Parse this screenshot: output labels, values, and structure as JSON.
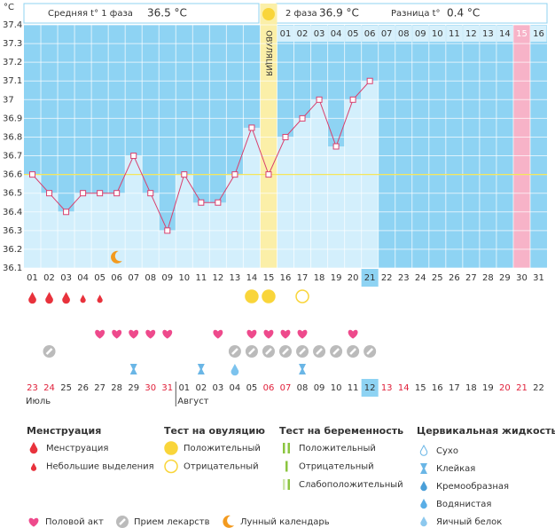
{
  "chart_data": {
    "type": "line",
    "y_unit": "°C",
    "ylim": [
      36.1,
      37.4
    ],
    "yticks": [
      36.1,
      36.2,
      36.3,
      36.4,
      36.5,
      36.6,
      36.7,
      36.8,
      36.9,
      37,
      37.1,
      37.2,
      37.3,
      37.4
    ],
    "categories": [
      "01",
      "02",
      "03",
      "04",
      "05",
      "06",
      "07",
      "08",
      "09",
      "10",
      "11",
      "12",
      "13",
      "14",
      "15",
      "16",
      "17",
      "18",
      "19",
      "20",
      "21",
      "22",
      "23",
      "24",
      "25",
      "26",
      "27",
      "28",
      "29",
      "30",
      "31"
    ],
    "values": [
      36.6,
      36.5,
      36.4,
      36.5,
      36.5,
      36.5,
      36.7,
      36.5,
      36.3,
      36.6,
      36.45,
      36.45,
      36.6,
      36.85,
      36.6,
      36.8,
      36.9,
      37.0,
      36.75,
      37.0,
      37.1,
      null,
      null,
      null,
      null,
      null,
      null,
      null,
      null,
      null,
      null
    ],
    "color": "#d9406e",
    "coverline": 36.6,
    "header": {
      "phase1_label": "Средняя t° 1 фаза",
      "phase1_value": "36.5 °C",
      "phase2_label": "2 фаза",
      "phase2_value": "36.9 °C",
      "diff_label": "Разница t°",
      "diff_value": "0.4 °C"
    },
    "ovulation": {
      "label": "ОВУЛЯЦИЯ",
      "day": "15"
    },
    "phase2_days": [
      "01",
      "02",
      "03",
      "04",
      "05",
      "06",
      "07",
      "08",
      "09",
      "10",
      "11",
      "12",
      "13",
      "14",
      "15",
      "16"
    ],
    "pink_day": "30",
    "today": "21",
    "menstruation": {
      "heavy": [
        "01",
        "02",
        "03"
      ],
      "light": [
        "04",
        "05"
      ]
    },
    "ovulation_test": {
      "positive": [
        "14",
        "15"
      ],
      "negative": [
        "17"
      ]
    },
    "intercourse": [
      "05",
      "06",
      "07",
      "08",
      "09",
      "12",
      "14",
      "15",
      "16",
      "17",
      "20"
    ],
    "medication": [
      "02",
      "13",
      "14",
      "15",
      "16",
      "17",
      "18",
      "19",
      "20",
      "21"
    ],
    "cervical": {
      "sticky": [
        "07",
        "11",
        "17"
      ],
      "watery": [
        "13"
      ]
    },
    "moon": [
      "06"
    ],
    "dates": [
      "23",
      "24",
      "25",
      "26",
      "27",
      "28",
      "29",
      "30",
      "31",
      "01",
      "02",
      "03",
      "04",
      "05",
      "06",
      "07",
      "08",
      "09",
      "10",
      "11",
      "12",
      "13",
      "14",
      "15",
      "16",
      "17",
      "18",
      "19",
      "20",
      "21",
      "22"
    ],
    "red_dates": [
      "23",
      "24",
      "30",
      "31",
      "06",
      "07",
      "13",
      "14",
      "20",
      "21"
    ],
    "today_date": "12",
    "months": [
      {
        "label": "Июль",
        "at": "23"
      },
      {
        "label": "Август",
        "at": "01"
      }
    ]
  },
  "legend": {
    "menstruation": {
      "title": "Менструация",
      "items": [
        "Менструация",
        "Небольшие выделения"
      ]
    },
    "ovulation_test": {
      "title": "Тест на овуляцию",
      "items": [
        "Положительный",
        "Отрицательный"
      ]
    },
    "pregnancy_test": {
      "title": "Тест на беременность",
      "items": [
        "Положительный",
        "Отрицательный",
        "Слабоположительный"
      ]
    },
    "cervical": {
      "title": "Цервикальная жидкость",
      "items": [
        "Сухо",
        "Клейкая",
        "Кремообразная",
        "Водянистая",
        "Яичный белок"
      ]
    },
    "other": [
      "Половой акт",
      "Прием лекарств",
      "Лунный календарь"
    ]
  }
}
